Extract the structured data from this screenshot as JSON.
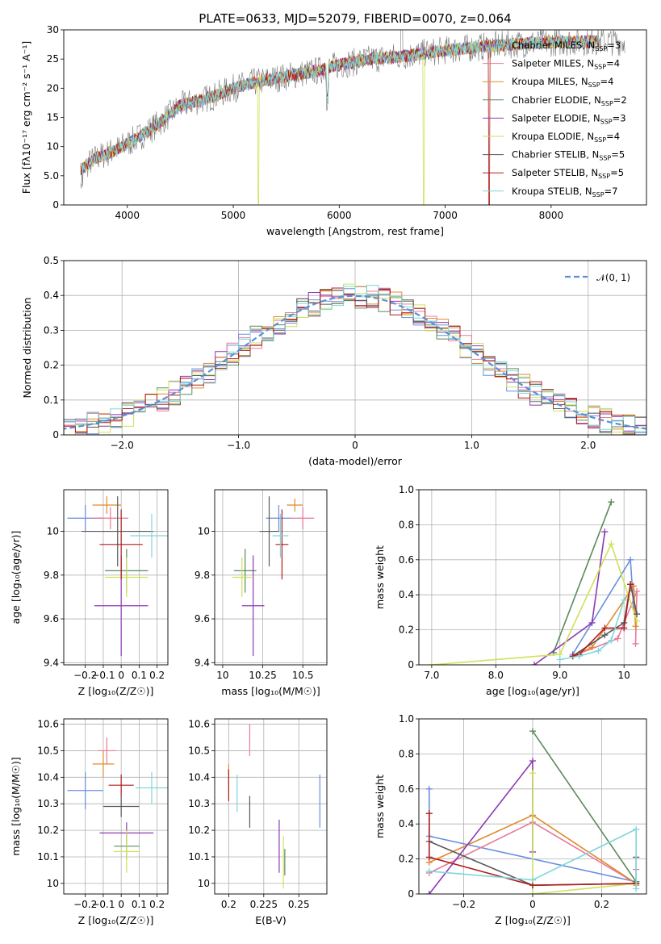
{
  "colors": [
    "#6a8ee0",
    "#e8799a",
    "#e08a2e",
    "#5b8a5b",
    "#8e39b5",
    "#cfe257",
    "#595959",
    "#b01c1c",
    "#7fd6dc"
  ],
  "chart_data": [
    {
      "type": "line",
      "title": "PLATE=0633, MJD=52079, FIBERID=0070, z=0.064",
      "xlabel": "wavelength [Angstrom, rest frame]",
      "ylabel": "Flux [fλ10⁻¹⁷ erg cm⁻² s⁻¹ A⁻¹]",
      "xlim": [
        3400,
        8900
      ],
      "ylim": [
        0,
        30
      ],
      "xticks": [
        4000,
        5000,
        6000,
        7000,
        8000
      ],
      "yticks": [
        0,
        5,
        10,
        15,
        20,
        25,
        30
      ],
      "legend_position": "right",
      "series": [
        {
          "name": "Chabrier MILES, N_SSP=3"
        },
        {
          "name": "Salpeter MILES, N_SSP=4"
        },
        {
          "name": "Kroupa MILES, N_SSP=4"
        },
        {
          "name": "Chabrier ELODIE, N_SSP=2"
        },
        {
          "name": "Salpeter ELODIE, N_SSP=3"
        },
        {
          "name": "Kroupa ELODIE, N_SSP=4"
        },
        {
          "name": "Chabrier STELIB, N_SSP=5"
        },
        {
          "name": "Salpeter STELIB, N_SSP=5"
        },
        {
          "name": "Kroupa STELIB, N_SSP=7"
        }
      ],
      "continuum": {
        "x": [
          3550,
          3700,
          3900,
          4100,
          4300,
          4500,
          4800,
          5000,
          5200,
          5500,
          5800,
          6000,
          6300,
          6600,
          6800,
          7000,
          7300,
          7600,
          7900,
          8200,
          8500
        ],
        "y": [
          6,
          8,
          9.5,
          11.5,
          14,
          17,
          18.5,
          20,
          21,
          22,
          23,
          24,
          25,
          25.5,
          26,
          26.5,
          27,
          27.5,
          27.8,
          28,
          28
        ]
      }
    },
    {
      "type": "histogram",
      "xlabel": "(data-model)/error",
      "ylabel": "Normed distribution",
      "xlim": [
        -2.5,
        2.5
      ],
      "ylim": [
        0,
        0.5
      ],
      "xticks": [
        -2,
        -1,
        0,
        1,
        2
      ],
      "yticks": [
        0.0,
        0.1,
        0.2,
        0.3,
        0.4,
        0.5
      ],
      "reference_curve": "𝒩(0, 1)",
      "legend_position": "upper right"
    },
    {
      "type": "scatter",
      "xlabel": "Z [log₁₀(Z/Z☉)]",
      "ylabel": "age  [log₁₀(age/yr)]",
      "xlim": [
        -0.32,
        0.26
      ],
      "ylim": [
        9.39,
        10.19
      ],
      "xticks": [
        -0.2,
        -0.1,
        0.0,
        0.1,
        0.2
      ],
      "yticks": [
        9.4,
        9.6,
        9.8,
        10.0
      ],
      "points": [
        {
          "x": -0.2,
          "xerr": 0.1,
          "y": 10.06,
          "yerr": 0.06
        },
        {
          "x": -0.06,
          "xerr": 0.1,
          "y": 10.06,
          "yerr": 0.05
        },
        {
          "x": -0.08,
          "xerr": 0.08,
          "y": 10.12,
          "yerr": 0.04
        },
        {
          "x": 0.03,
          "xerr": 0.12,
          "y": 9.82,
          "yerr": 0.1
        },
        {
          "x": 0.0,
          "xerr": 0.15,
          "y": 9.66,
          "yerr": 0.23
        },
        {
          "x": 0.03,
          "xerr": 0.12,
          "y": 9.79,
          "yerr": 0.09
        },
        {
          "x": -0.02,
          "xerr": 0.2,
          "y": 10.0,
          "yerr": 0.16
        },
        {
          "x": 0.0,
          "xerr": 0.12,
          "y": 9.94,
          "yerr": 0.16
        },
        {
          "x": 0.17,
          "xerr": 0.12,
          "y": 9.98,
          "yerr": 0.1
        }
      ]
    },
    {
      "type": "scatter",
      "xlabel": "mass [log₁₀(M/M☉)]",
      "ylabel": "",
      "xlim": [
        9.95,
        10.65
      ],
      "ylim": [
        9.39,
        10.19
      ],
      "xticks": [
        10.0,
        10.25,
        10.5
      ],
      "yticks": [
        9.4,
        9.6,
        9.8,
        10.0
      ],
      "points": [
        {
          "x": 10.35,
          "xerr": 0.08,
          "y": 10.06,
          "yerr": 0.06
        },
        {
          "x": 10.5,
          "xerr": 0.07,
          "y": 10.06,
          "yerr": 0.05
        },
        {
          "x": 10.45,
          "xerr": 0.05,
          "y": 10.12,
          "yerr": 0.03
        },
        {
          "x": 10.14,
          "xerr": 0.07,
          "y": 9.82,
          "yerr": 0.1
        },
        {
          "x": 10.19,
          "xerr": 0.07,
          "y": 9.66,
          "yerr": 0.23
        },
        {
          "x": 10.12,
          "xerr": 0.06,
          "y": 9.79,
          "yerr": 0.09
        },
        {
          "x": 10.29,
          "xerr": 0.06,
          "y": 10.0,
          "yerr": 0.16
        },
        {
          "x": 10.37,
          "xerr": 0.04,
          "y": 9.94,
          "yerr": 0.16
        },
        {
          "x": 10.36,
          "xerr": 0.05,
          "y": 9.98,
          "yerr": 0.1
        }
      ]
    },
    {
      "type": "line",
      "xlabel": "age  [log₁₀(age/yr)]",
      "ylabel": "mass weight",
      "xlim": [
        6.8,
        10.35
      ],
      "ylim": [
        0,
        1.0
      ],
      "xticks": [
        7,
        8,
        9,
        10
      ],
      "yticks": [
        0.0,
        0.2,
        0.4,
        0.6,
        0.8,
        1.0
      ],
      "series": [
        {
          "x": [
            9.2,
            10.1,
            10.15
          ],
          "y": [
            0.06,
            0.6,
            0.33
          ]
        },
        {
          "x": [
            9.2,
            9.9,
            10.2,
            10.18
          ],
          "y": [
            0.05,
            0.15,
            0.42,
            0.12
          ]
        },
        {
          "x": [
            9.2,
            9.5,
            10.15,
            10.18
          ],
          "y": [
            0.05,
            0.1,
            0.45,
            0.22
          ]
        },
        {
          "x": [
            8.9,
            9.8
          ],
          "y": [
            0.07,
            0.93
          ]
        },
        {
          "x": [
            8.6,
            9.5,
            9.7
          ],
          "y": [
            0.0,
            0.24,
            0.76
          ]
        },
        {
          "x": [
            7.0,
            9.0,
            9.8,
            10.2
          ],
          "y": [
            0.0,
            0.06,
            0.69,
            0.25
          ]
        },
        {
          "x": [
            9.2,
            9.7,
            10.0,
            10.1,
            10.2
          ],
          "y": [
            0.05,
            0.17,
            0.24,
            0.46,
            0.29
          ]
        },
        {
          "x": [
            9.2,
            9.3,
            9.7,
            10.0,
            10.1
          ],
          "y": [
            0.05,
            0.06,
            0.21,
            0.21,
            0.46
          ]
        },
        {
          "x": [
            9.0,
            9.3,
            9.6,
            9.8,
            10.0
          ],
          "y": [
            0.03,
            0.05,
            0.08,
            0.14,
            0.37
          ]
        }
      ]
    },
    {
      "type": "scatter",
      "xlabel": "Z [log₁₀(Z/Z☉)]",
      "ylabel": "mass [log₁₀(M/M☉)]",
      "xlim": [
        -0.32,
        0.26
      ],
      "ylim": [
        9.96,
        10.62
      ],
      "xticks": [
        -0.2,
        -0.1,
        0.0,
        0.1,
        0.2
      ],
      "yticks": [
        10.0,
        10.1,
        10.2,
        10.3,
        10.4,
        10.5,
        10.6
      ],
      "points": [
        {
          "x": -0.2,
          "xerr": 0.1,
          "y": 10.35,
          "yerr": 0.07
        },
        {
          "x": -0.08,
          "xerr": 0.05,
          "y": 10.5,
          "yerr": 0.05
        },
        {
          "x": -0.1,
          "xerr": 0.06,
          "y": 10.45,
          "yerr": 0.05
        },
        {
          "x": 0.03,
          "xerr": 0.07,
          "y": 10.14,
          "yerr": 0.05
        },
        {
          "x": 0.03,
          "xerr": 0.15,
          "y": 10.19,
          "yerr": 0.04
        },
        {
          "x": 0.03,
          "xerr": 0.07,
          "y": 10.12,
          "yerr": 0.08
        },
        {
          "x": 0.0,
          "xerr": 0.1,
          "y": 10.29,
          "yerr": 0.04
        },
        {
          "x": 0.0,
          "xerr": 0.07,
          "y": 10.37,
          "yerr": 0.04
        },
        {
          "x": 0.17,
          "xerr": 0.09,
          "y": 10.36,
          "yerr": 0.06
        }
      ]
    },
    {
      "type": "scatter",
      "xlabel": "E(B-V)",
      "ylabel": "",
      "xlim": [
        0.19,
        0.27
      ],
      "ylim": [
        9.96,
        10.62
      ],
      "xticks": [
        0.2,
        0.225,
        0.25
      ],
      "yticks": [
        10.0,
        10.1,
        10.2,
        10.3,
        10.4,
        10.5,
        10.6
      ],
      "points": [
        {
          "x": 0.265,
          "y": 10.31,
          "yerr": 0.1
        },
        {
          "x": 0.215,
          "y": 10.54,
          "yerr": 0.06
        },
        {
          "x": 0.2,
          "y": 10.4,
          "yerr": 0.05
        },
        {
          "x": 0.24,
          "y": 10.08,
          "yerr": 0.05
        },
        {
          "x": 0.236,
          "y": 10.14,
          "yerr": 0.1
        },
        {
          "x": 0.239,
          "y": 10.08,
          "yerr": 0.1
        },
        {
          "x": 0.215,
          "y": 10.27,
          "yerr": 0.06
        },
        {
          "x": 0.2,
          "y": 10.37,
          "yerr": 0.06
        },
        {
          "x": 0.206,
          "y": 10.34,
          "yerr": 0.07
        }
      ]
    },
    {
      "type": "line",
      "xlabel": "Z [log₁₀(Z/Z☉)]",
      "ylabel": "mass weight",
      "xlim": [
        -0.33,
        0.33
      ],
      "ylim": [
        0,
        1.0
      ],
      "xticks": [
        -0.2,
        0.0,
        0.2
      ],
      "yticks": [
        0.0,
        0.2,
        0.4,
        0.6,
        0.8,
        1.0
      ],
      "series": [
        {
          "x": [
            -0.3,
            -0.3,
            0.3
          ],
          "y": [
            0.6,
            0.33,
            0.07
          ]
        },
        {
          "x": [
            -0.3,
            0.0,
            0.3,
            0.3
          ],
          "y": [
            0.12,
            0.41,
            0.06,
            0.14
          ]
        },
        {
          "x": [
            -0.3,
            0.0,
            0.3,
            0.3
          ],
          "y": [
            0.18,
            0.45,
            0.06,
            0.05
          ]
        },
        {
          "x": [
            0.0,
            0.3
          ],
          "y": [
            0.93,
            0.07
          ]
        },
        {
          "x": [
            -0.3,
            0.0,
            0.0
          ],
          "y": [
            0.0,
            0.76,
            0.24
          ]
        },
        {
          "x": [
            0.0,
            0.0,
            0.3
          ],
          "y": [
            0.69,
            0.0,
            0.06
          ]
        },
        {
          "x": [
            -0.3,
            0.0,
            0.3,
            0.3
          ],
          "y": [
            0.3,
            0.05,
            0.06,
            0.21
          ]
        },
        {
          "x": [
            -0.3,
            -0.3,
            0.0,
            0.3
          ],
          "y": [
            0.46,
            0.21,
            0.05,
            0.06
          ]
        },
        {
          "x": [
            -0.3,
            0.0,
            0.3,
            0.3
          ],
          "y": [
            0.13,
            0.08,
            0.37,
            0.03
          ]
        }
      ]
    }
  ]
}
